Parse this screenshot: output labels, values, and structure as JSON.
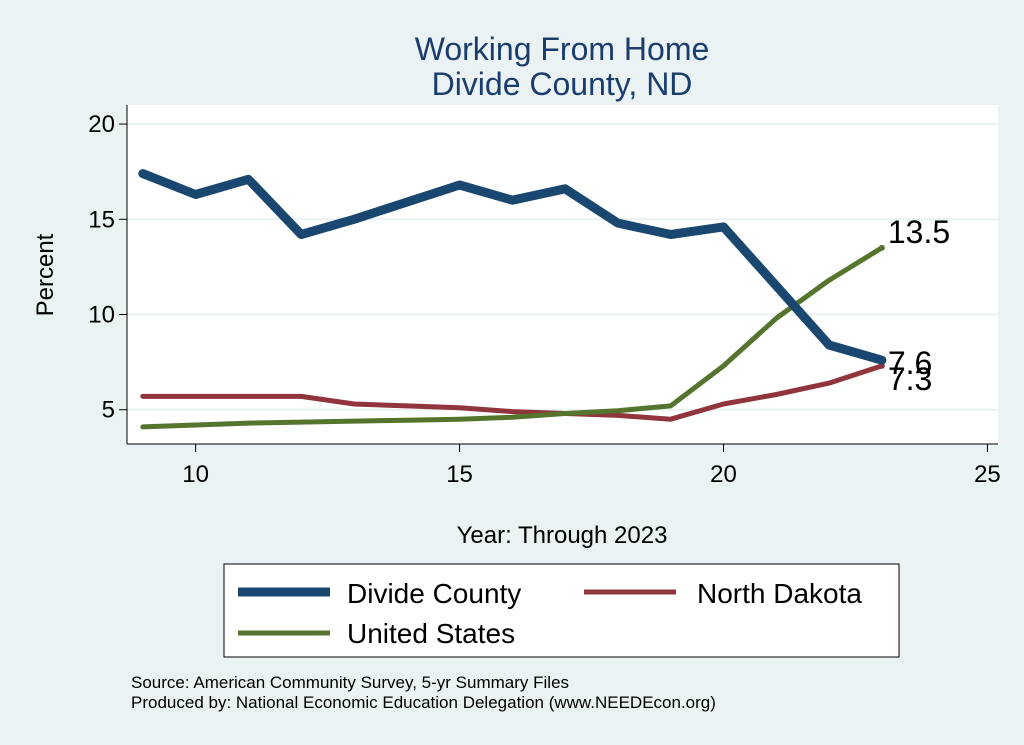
{
  "chart_data": {
    "type": "line",
    "title": [
      "Working From Home",
      "Divide County, ND"
    ],
    "xlabel": "Year: Through 2023",
    "ylabel": "Percent",
    "xlim": [
      8.7,
      25.2
    ],
    "ylim": [
      3.2,
      21.0
    ],
    "xticks": [
      10,
      15,
      20,
      25
    ],
    "yticks": [
      5,
      10,
      15,
      20
    ],
    "grid": true,
    "legend_position": "bottom",
    "x": [
      9,
      10,
      11,
      12,
      13,
      14,
      15,
      16,
      17,
      18,
      19,
      20,
      21,
      22,
      23
    ],
    "series": [
      {
        "name": "Divide County",
        "color": "#1a476f",
        "values": [
          17.4,
          16.3,
          17.1,
          14.2,
          15.0,
          15.9,
          16.8,
          16.0,
          16.6,
          14.8,
          14.2,
          14.6,
          11.5,
          8.4,
          7.6
        ],
        "end_label": "7.6"
      },
      {
        "name": "North Dakota",
        "color": "#90353b",
        "values": [
          5.7,
          5.7,
          5.7,
          5.7,
          5.3,
          5.2,
          5.1,
          4.9,
          4.8,
          4.7,
          4.5,
          5.3,
          5.8,
          6.4,
          7.3
        ],
        "end_label": "7.3"
      },
      {
        "name": "United States",
        "color": "#55752f",
        "values": [
          4.1,
          4.2,
          4.3,
          4.35,
          4.4,
          4.45,
          4.5,
          4.6,
          4.8,
          4.95,
          5.2,
          7.3,
          9.8,
          11.8,
          13.5
        ],
        "end_label": "13.5"
      }
    ]
  },
  "notes": [
    "Source: American Community Survey, 5-yr Summary Files",
    "Produced by: National Economic Education Delegation (www.NEEDEcon.org)"
  ]
}
